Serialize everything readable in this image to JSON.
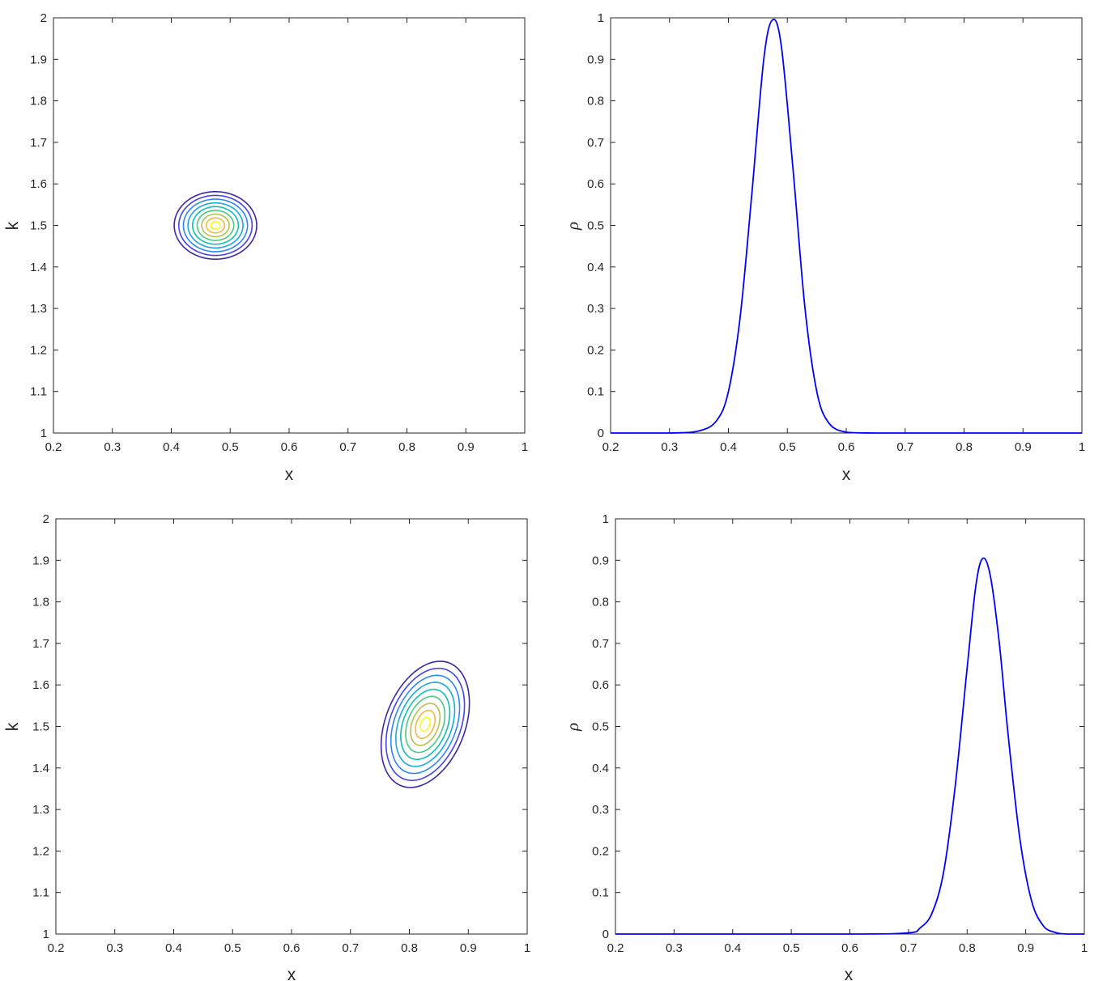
{
  "chart_data": [
    {
      "type": "contour",
      "xlabel": "x",
      "ylabel": "k",
      "xlim": [
        0.2,
        1
      ],
      "ylim": [
        1,
        2
      ],
      "xticks": [
        "0.2",
        "0.3",
        "0.4",
        "0.5",
        "0.6",
        "0.7",
        "0.8",
        "0.9",
        "1"
      ],
      "yticks": [
        "1",
        "1.1",
        "1.2",
        "1.3",
        "1.4",
        "1.5",
        "1.6",
        "1.7",
        "1.8",
        "1.9",
        "2"
      ],
      "grid": false,
      "center": [
        0.475,
        1.5
      ],
      "outer_semi_axes": [
        0.07,
        0.083
      ],
      "tilt_deg": 0,
      "levels": 9,
      "colormap": [
        "#3e26a8",
        "#4443e9",
        "#2e87f7",
        "#1aa9dd",
        "#10bfb4",
        "#4bc980",
        "#b8c04c",
        "#f5b93a",
        "#f9fb15"
      ]
    },
    {
      "type": "line",
      "xlabel": "x",
      "ylabel": "ρ",
      "xlim": [
        0.2,
        1
      ],
      "ylim": [
        0,
        1
      ],
      "xticks": [
        "0.2",
        "0.3",
        "0.4",
        "0.5",
        "0.6",
        "0.7",
        "0.8",
        "0.9",
        "1"
      ],
      "yticks": [
        "0",
        "0.1",
        "0.2",
        "0.3",
        "0.4",
        "0.5",
        "0.6",
        "0.7",
        "0.8",
        "0.9",
        "1"
      ],
      "grid": false,
      "color": "#0000ff",
      "x": [
        0.2,
        0.3,
        0.35,
        0.38,
        0.4,
        0.42,
        0.44,
        0.46,
        0.475,
        0.49,
        0.51,
        0.53,
        0.55,
        0.57,
        0.6,
        0.65,
        0.8,
        1.0
      ],
      "y": [
        0,
        0,
        0.005,
        0.03,
        0.1,
        0.28,
        0.58,
        0.9,
        0.995,
        0.93,
        0.63,
        0.3,
        0.1,
        0.025,
        0.002,
        0,
        0,
        0
      ]
    },
    {
      "type": "contour",
      "xlabel": "x",
      "ylabel": "k",
      "xlim": [
        0.2,
        1
      ],
      "ylim": [
        1,
        2
      ],
      "xticks": [
        "0.2",
        "0.3",
        "0.4",
        "0.5",
        "0.6",
        "0.7",
        "0.8",
        "0.9",
        "1"
      ],
      "yticks": [
        "1",
        "1.1",
        "1.2",
        "1.3",
        "1.4",
        "1.5",
        "1.6",
        "1.7",
        "1.8",
        "1.9",
        "2"
      ],
      "grid": false,
      "center": [
        0.827,
        1.505
      ],
      "outer_semi_axes": [
        0.075,
        0.165
      ],
      "tilt_deg": 20,
      "levels": 9,
      "colormap": [
        "#3e26a8",
        "#4443e9",
        "#2e87f7",
        "#1aa9dd",
        "#10bfb4",
        "#4bc980",
        "#b8c04c",
        "#f5b93a",
        "#f9fb15"
      ]
    },
    {
      "type": "line",
      "xlabel": "x",
      "ylabel": "ρ",
      "xlim": [
        0.2,
        1
      ],
      "ylim": [
        0,
        1
      ],
      "xticks": [
        "0.2",
        "0.3",
        "0.4",
        "0.5",
        "0.6",
        "0.7",
        "0.8",
        "0.9",
        "1"
      ],
      "yticks": [
        "0",
        "0.1",
        "0.2",
        "0.3",
        "0.4",
        "0.5",
        "0.6",
        "0.7",
        "0.8",
        "0.9",
        "1"
      ],
      "grid": false,
      "color": "#0000ff",
      "x": [
        0.2,
        0.6,
        0.7,
        0.72,
        0.74,
        0.76,
        0.78,
        0.8,
        0.815,
        0.827,
        0.84,
        0.855,
        0.87,
        0.89,
        0.91,
        0.93,
        0.95,
        0.97,
        1.0
      ],
      "y": [
        0,
        0,
        0.003,
        0.015,
        0.05,
        0.15,
        0.36,
        0.64,
        0.84,
        0.905,
        0.86,
        0.7,
        0.48,
        0.23,
        0.08,
        0.02,
        0.004,
        0,
        0
      ]
    }
  ]
}
